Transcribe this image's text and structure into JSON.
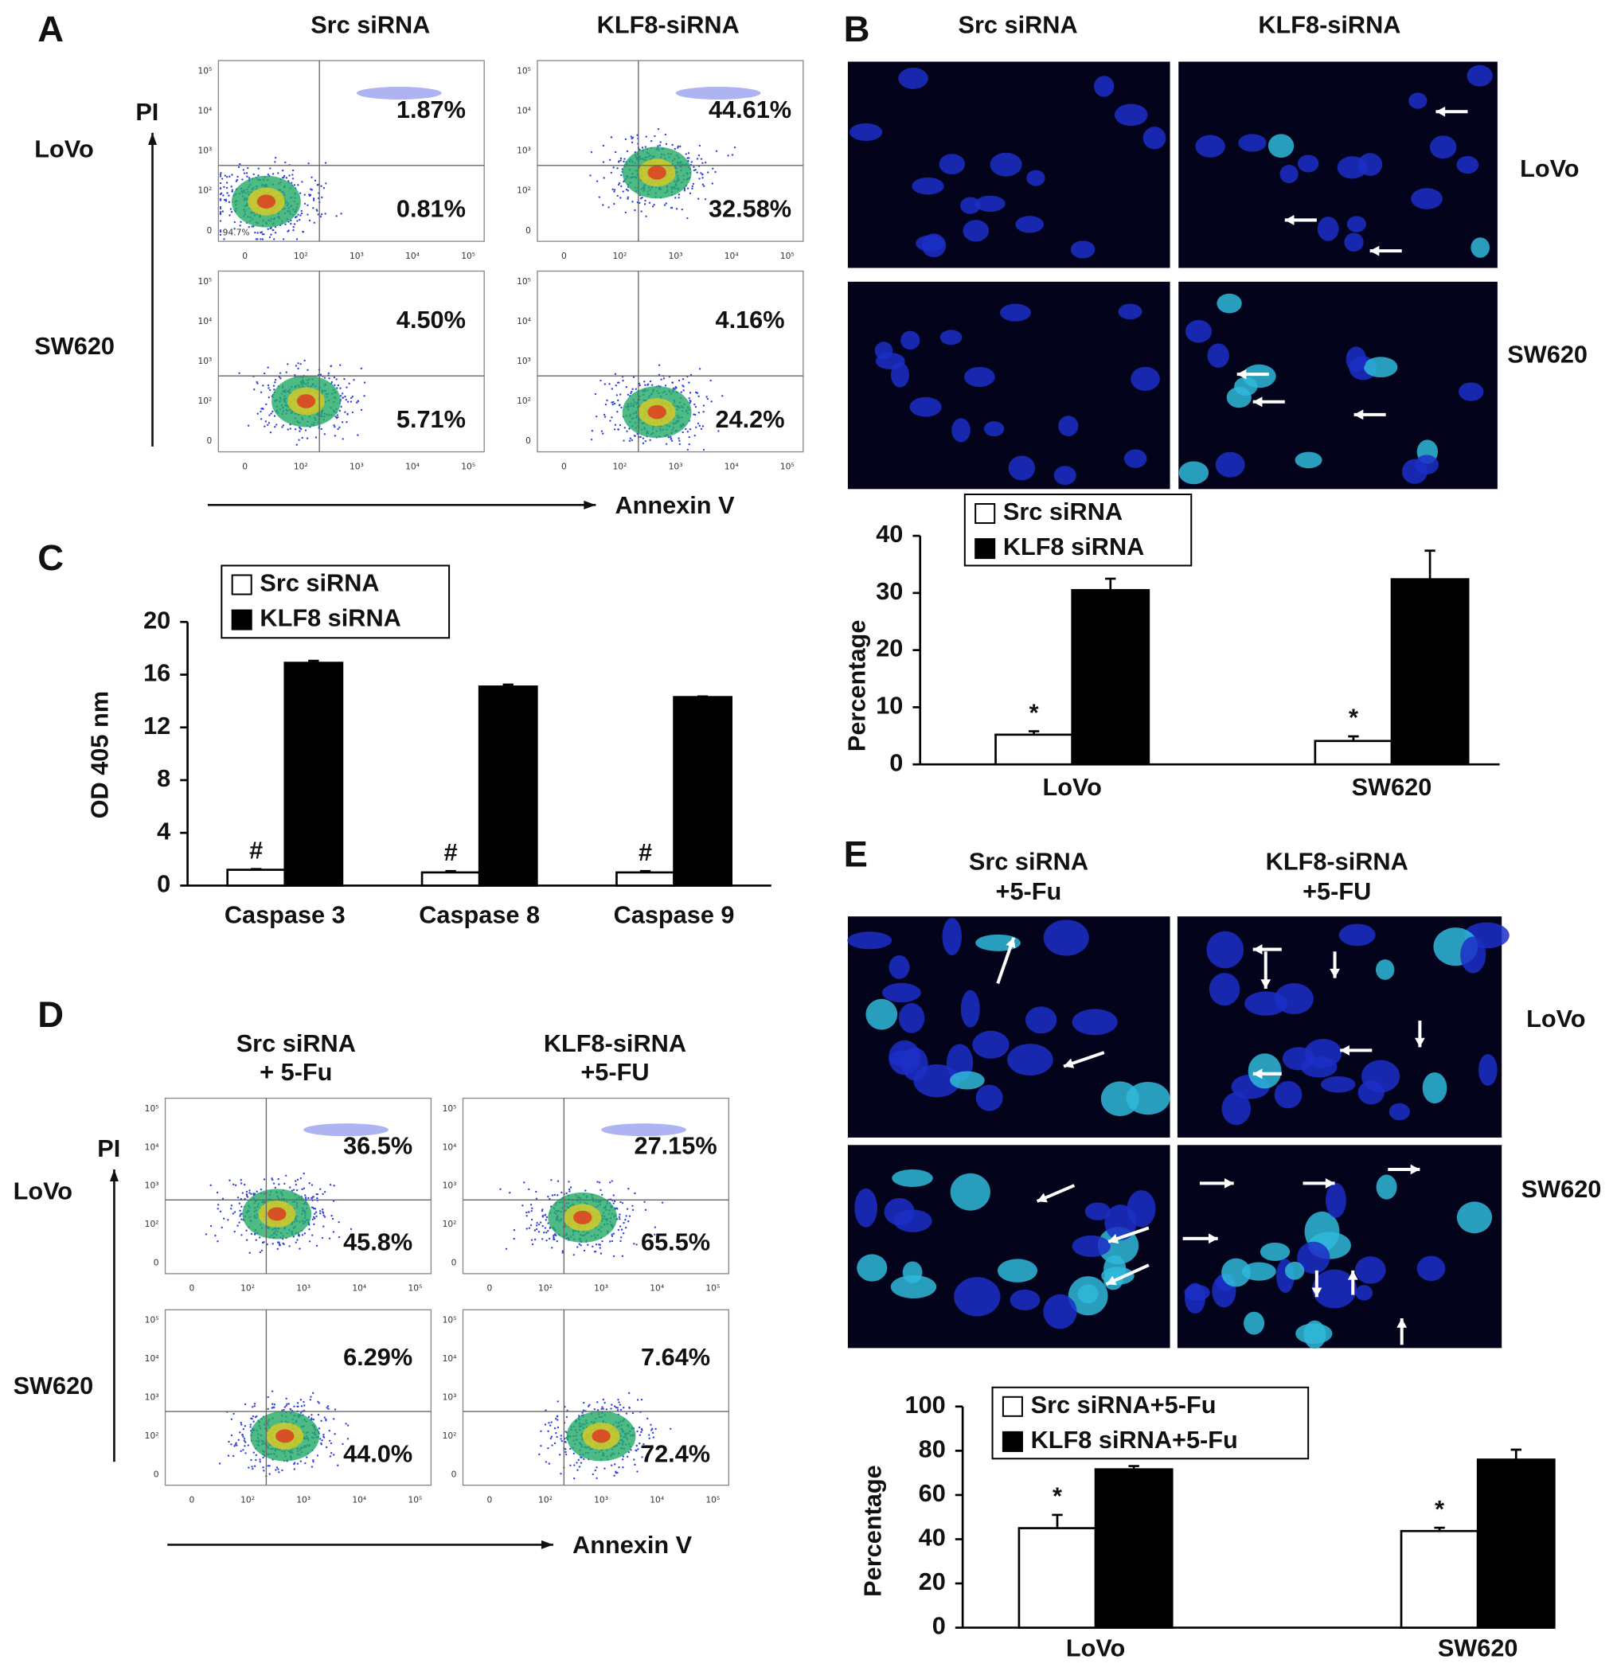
{
  "panel_letters": [
    "A",
    "B",
    "C",
    "D",
    "E"
  ],
  "flow_panels": [
    {
      "columns": [
        [
          "Src siRNA"
        ],
        [
          "KLF8-siRNA"
        ]
      ],
      "rows": [
        "LoVo",
        "SW620"
      ],
      "quadrants": [
        [
          [
            "1.87%",
            "0.81%"
          ],
          [
            "44.61%",
            "32.58%"
          ]
        ],
        [
          [
            "4.50%",
            "5.71%"
          ],
          [
            "4.16%",
            "24.2%"
          ]
        ]
      ],
      "corner_label": "94.7%",
      "y_axis_label": "PI",
      "x_axis_label": "Annexin V",
      "y_tick_labels": [
        "10⁵",
        "10⁴",
        "10³",
        "10²",
        "0"
      ],
      "x_tick_labels": [
        "0",
        "10²",
        "10³",
        "10⁴",
        "10⁵"
      ]
    },
    {
      "columns": [
        [
          "Src siRNA",
          "+ 5-Fu"
        ],
        [
          "KLF8-siRNA",
          "+5-FU"
        ]
      ],
      "rows": [
        "LoVo",
        "SW620"
      ],
      "quadrants": [
        [
          [
            "36.5%",
            "45.8%"
          ],
          [
            "27.15%",
            "65.5%"
          ]
        ],
        [
          [
            "6.29%",
            "44.0%"
          ],
          [
            "7.64%",
            "72.4%"
          ]
        ]
      ],
      "y_axis_label": "PI",
      "x_axis_label": "Annexin V",
      "y_tick_labels": [
        "10⁵",
        "10⁴",
        "10³",
        "10²",
        "0"
      ],
      "x_tick_labels": [
        "0",
        "10²",
        "10³",
        "10⁴",
        "10⁵"
      ]
    }
  ],
  "microscopy_panels": [
    {
      "columns": [
        [
          "Src siRNA"
        ],
        [
          "KLF8-siRNA"
        ]
      ],
      "rows": [
        "LoVo",
        "SW620"
      ]
    },
    {
      "columns": [
        [
          "Src siRNA",
          "+5-Fu"
        ],
        [
          "KLF8-siRNA",
          "+5-FU"
        ]
      ],
      "rows": [
        "LoVo",
        "SW620"
      ]
    }
  ],
  "chart_data": [
    {
      "type": "bar",
      "y_axis_label": "OD 405 nm",
      "categories": [
        "Caspase 3",
        "Caspase 8",
        "Caspase 9"
      ],
      "series": [
        {
          "name": "Src siRNA",
          "color": "#ffffff",
          "values": [
            1.2,
            1.0,
            1.0
          ],
          "errors": [
            0.05,
            0.1,
            0.1
          ]
        },
        {
          "name": "KLF8 siRNA",
          "color": "#000000",
          "values": [
            16.9,
            15.1,
            14.3
          ],
          "errors": [
            0.15,
            0.15,
            0.05
          ]
        }
      ],
      "annotations": [
        "#",
        "#",
        "#"
      ],
      "ylim": [
        0,
        20
      ],
      "yticks": [
        0,
        4,
        8,
        12,
        16,
        20
      ]
    },
    {
      "type": "bar",
      "y_axis_label": "Percentage",
      "categories": [
        "LoVo",
        "SW620"
      ],
      "series": [
        {
          "name": "Src siRNA",
          "color": "#ffffff",
          "values": [
            5.2,
            4.1
          ],
          "errors": [
            0.6,
            0.8
          ]
        },
        {
          "name": "KLF8 siRNA",
          "color": "#000000",
          "values": [
            30.5,
            32.4
          ],
          "errors": [
            2,
            5
          ]
        }
      ],
      "annotations": [
        "*",
        "*"
      ],
      "ylim": [
        0,
        40
      ],
      "yticks": [
        0,
        10,
        20,
        30,
        40
      ]
    },
    {
      "type": "bar",
      "y_axis_label": "Percentage",
      "categories": [
        "LoVo",
        "SW620"
      ],
      "series": [
        {
          "name": "Src siRNA+5-Fu",
          "color": "#ffffff",
          "values": [
            45,
            43.7
          ],
          "errors": [
            6,
            1.5
          ]
        },
        {
          "name": "KLF8 siRNA+5-Fu",
          "color": "#000000",
          "values": [
            71.6,
            76
          ],
          "errors": [
            1.5,
            4.5
          ]
        }
      ],
      "annotations": [
        "*",
        "*"
      ],
      "ylim": [
        0,
        100
      ],
      "yticks": [
        0,
        20,
        40,
        60,
        80,
        100
      ]
    }
  ]
}
